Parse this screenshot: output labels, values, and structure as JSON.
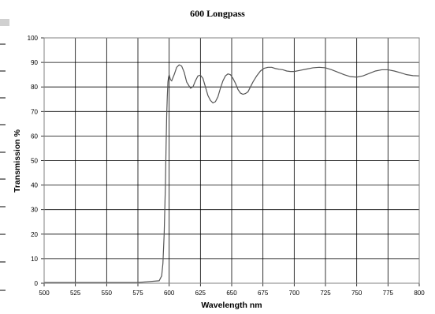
{
  "chart_data": {
    "type": "line",
    "title": "600 Longpass",
    "xlabel": "Wavelength nm",
    "ylabel": "Transmission %",
    "xlim": [
      500,
      800
    ],
    "ylim": [
      0,
      100
    ],
    "xticks": [
      500,
      525,
      550,
      575,
      600,
      625,
      650,
      675,
      700,
      725,
      750,
      775,
      800
    ],
    "yticks": [
      0,
      10,
      20,
      30,
      40,
      50,
      60,
      70,
      80,
      90,
      100
    ],
    "grid": true,
    "legend": "none",
    "line_color": "#555555",
    "series": [
      {
        "x": [
          500,
          575,
          592,
          594,
          595,
          596,
          597,
          597.5,
          598,
          598.5,
          599,
          599.5,
          600,
          601,
          602,
          604,
          606,
          608,
          610,
          612,
          614,
          617,
          619,
          621,
          623,
          625,
          627,
          629,
          631,
          633,
          635,
          637,
          639,
          641,
          643,
          645,
          647,
          649,
          651,
          653,
          655,
          657,
          659,
          661,
          663,
          665,
          667,
          670,
          673,
          676,
          679,
          682,
          685,
          688,
          691,
          694,
          697,
          700,
          705,
          710,
          715,
          720,
          725,
          730,
          735,
          740,
          745,
          750,
          755,
          760,
          765,
          770,
          775,
          780,
          785,
          790,
          795,
          800
        ],
        "y": [
          0.3,
          0.3,
          1,
          3,
          8,
          20,
          40,
          55,
          68,
          76,
          82,
          84,
          85,
          83,
          82.5,
          85,
          88,
          89,
          88.5,
          86,
          82,
          79.5,
          80,
          82.5,
          84.5,
          84.8,
          83.5,
          80,
          76.5,
          74.5,
          73.5,
          74,
          76,
          79.5,
          82.5,
          84.5,
          85.3,
          85,
          83.5,
          81.5,
          79,
          77.5,
          77,
          77.3,
          78,
          80,
          82,
          84.5,
          86.5,
          87.6,
          88,
          88,
          87.5,
          87.2,
          87,
          86.5,
          86.3,
          86.3,
          86.8,
          87.3,
          87.8,
          88,
          87.8,
          87,
          86,
          85,
          84.2,
          84,
          84.5,
          85.5,
          86.5,
          87,
          87,
          86.5,
          85.8,
          85,
          84.6,
          84.5
        ]
      }
    ]
  }
}
